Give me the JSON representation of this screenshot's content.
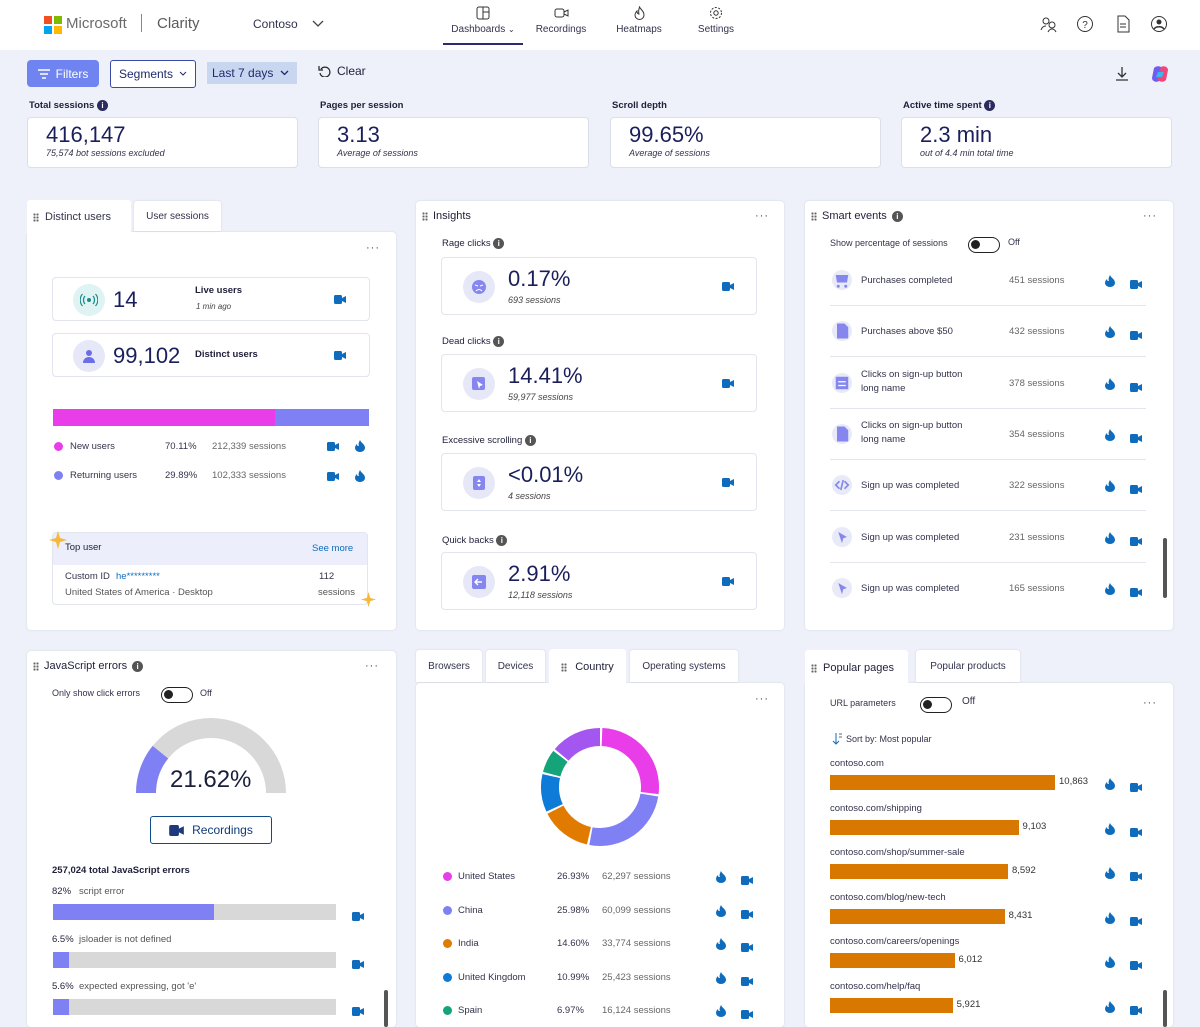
{
  "header": {
    "brand_ms": "Microsoft",
    "brand_app": "Clarity",
    "project": "Contoso",
    "nav": [
      {
        "label": "Dashboards",
        "icon": "dashboard-icon"
      },
      {
        "label": "Recordings",
        "icon": "video-icon"
      },
      {
        "label": "Heatmaps",
        "icon": "flame-icon"
      },
      {
        "label": "Settings",
        "icon": "gear-icon"
      }
    ],
    "ms_colors": [
      "#f25022",
      "#7fba00",
      "#00a4ef",
      "#ffb900"
    ]
  },
  "filters": {
    "filters_label": "Filters",
    "segments_label": "Segments",
    "date_label": "Last 7 days",
    "clear_label": "Clear"
  },
  "stats": [
    {
      "label": "Total sessions",
      "value": "416,147",
      "sub": "75,574 bot sessions excluded"
    },
    {
      "label": "Pages per session",
      "value": "3.13",
      "sub": "Average of sessions"
    },
    {
      "label": "Scroll depth",
      "value": "99.65%",
      "sub": "Average of sessions"
    },
    {
      "label": "Active time spent",
      "value": "2.3 min",
      "sub": "out of 4.4 min total time"
    }
  ],
  "users_panel": {
    "tab_active": "Distinct users",
    "tab_other": "User sessions",
    "live_value": "14",
    "live_label": "Live users",
    "live_time": "1 min ago",
    "distinct_value": "99,102",
    "distinct_label": "Distinct users",
    "new_share": 0.7011,
    "rows": [
      {
        "label": "New users",
        "pct": "70.11%",
        "sessions": "212,339 sessions",
        "color": "#e83de8"
      },
      {
        "label": "Returning users",
        "pct": "29.89%",
        "sessions": "102,333 sessions",
        "color": "#7f80f3"
      }
    ],
    "top_user_title": "Top user",
    "see_more": "See more",
    "custom_id_label": "Custom ID",
    "custom_id_value": "he*********",
    "location": "United States of America · Desktop",
    "sessions_count": "112",
    "sessions_word": "sessions"
  },
  "insights": {
    "title": "Insights",
    "items": [
      {
        "label": "Rage clicks",
        "value": "0.17%",
        "sub": "693 sessions",
        "icon": "angry-face-icon"
      },
      {
        "label": "Dead clicks",
        "value": "14.41%",
        "sub": "59,977 sessions",
        "icon": "cursor-click-icon"
      },
      {
        "label": "Excessive scrolling",
        "value": "<0.01%",
        "sub": "4 sessions",
        "icon": "scroll-icon"
      },
      {
        "label": "Quick backs",
        "value": "2.91%",
        "sub": "12,118 sessions",
        "icon": "back-arrow-icon"
      }
    ]
  },
  "smart_events": {
    "title": "Smart events",
    "toggle_label": "Show percentage of sessions",
    "toggle_state": "Off",
    "items": [
      {
        "line1": "Purchases completed",
        "line2": "",
        "sessions": "451 sessions",
        "icon": "cart-icon"
      },
      {
        "line1": "Purchases above $50",
        "line2": "",
        "sessions": "432 sessions",
        "icon": "document-icon"
      },
      {
        "line1": "Clicks on sign-up button",
        "line2": "long name",
        "sessions": "378 sessions",
        "icon": "form-icon"
      },
      {
        "line1": "Clicks on sign-up button",
        "line2": "long name",
        "sessions": "354 sessions",
        "icon": "document-icon"
      },
      {
        "line1": "Sign up was completed",
        "line2": "",
        "sessions": "322 sessions",
        "icon": "code-icon"
      },
      {
        "line1": "Sign up was completed",
        "line2": "",
        "sessions": "231 sessions",
        "icon": "cursor-icon"
      },
      {
        "line1": "Sign up was completed",
        "line2": "",
        "sessions": "165 sessions",
        "icon": "cursor-icon"
      }
    ]
  },
  "js_errors": {
    "title": "JavaScript errors",
    "toggle_label": "Only show click errors",
    "toggle_state": "Off",
    "gauge_value": "21.62%",
    "gauge_fraction": 0.2162,
    "recordings_label": "Recordings",
    "total_label": "257,024 total JavaScript errors",
    "errors": [
      {
        "pct": "82%",
        "label": "script error",
        "fraction": 0.82
      },
      {
        "pct": "6.5%",
        "label": "jsloader is not defined",
        "fraction": 0.065
      },
      {
        "pct": "5.6%",
        "label": "expected expressing, got 'e'",
        "fraction": 0.056
      }
    ]
  },
  "country_panel": {
    "tabs": [
      "Browsers",
      "Devices",
      "Country",
      "Operating systems"
    ],
    "active_tab": "Country",
    "rows": [
      {
        "label": "United States",
        "pct": "26.93%",
        "sessions": "62,297 sessions",
        "color": "#e83de8"
      },
      {
        "label": "China",
        "pct": "25.98%",
        "sessions": "60,099 sessions",
        "color": "#7f80f3"
      },
      {
        "label": "India",
        "pct": "14.60%",
        "sessions": "33,774 sessions",
        "color": "#e07b00"
      },
      {
        "label": "United Kingdom",
        "pct": "10.99%",
        "sessions": "25,423 sessions",
        "color": "#0f7bd8"
      },
      {
        "label": "Spain",
        "pct": "6.97%",
        "sessions": "16,124 sessions",
        "color": "#15a37a"
      }
    ],
    "donut_other_color": "#a456f0"
  },
  "popular_pages": {
    "tab_active": "Popular pages",
    "tab_other": "Popular products",
    "toggle_label": "URL parameters",
    "toggle_state": "Off",
    "sort_label": "Sort by: Most popular",
    "pages": [
      {
        "url": "contoso.com",
        "count": "10,863",
        "value": 10863
      },
      {
        "url": "contoso.com/shipping",
        "count": "9,103",
        "value": 9103
      },
      {
        "url": "contoso.com/shop/summer-sale",
        "count": "8,592",
        "value": 8592
      },
      {
        "url": "contoso.com/blog/new-tech",
        "count": "8,431",
        "value": 8431
      },
      {
        "url": "contoso.com/careers/openings",
        "count": "6,012",
        "value": 6012
      },
      {
        "url": "contoso.com/help/faq",
        "count": "5,921",
        "value": 5921
      }
    ]
  }
}
